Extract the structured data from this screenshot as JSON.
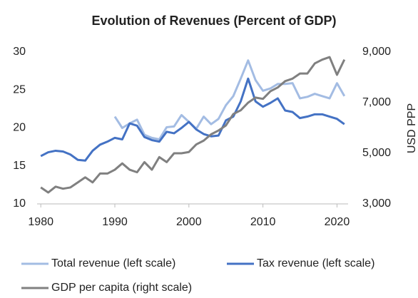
{
  "chart_data": {
    "type": "line",
    "title": "Evolution of Revenues (Percent of GDP)",
    "x": [
      1980,
      1981,
      1982,
      1983,
      1984,
      1985,
      1986,
      1987,
      1988,
      1989,
      1990,
      1991,
      1992,
      1993,
      1994,
      1995,
      1996,
      1997,
      1998,
      1999,
      2000,
      2001,
      2002,
      2003,
      2004,
      2005,
      2006,
      2007,
      2008,
      2009,
      2010,
      2011,
      2012,
      2013,
      2014,
      2015,
      2016,
      2017,
      2018,
      2019,
      2020,
      2021
    ],
    "xlim": [
      1979.5,
      2021.5
    ],
    "xticks": [
      1980,
      1990,
      2000,
      2010,
      2020
    ],
    "ylim": [
      10,
      30
    ],
    "yticks": [
      10,
      15,
      20,
      25,
      30
    ],
    "y2lim": [
      3000,
      9000
    ],
    "y2ticks": [
      {
        "value": 3000,
        "label": "3,000"
      },
      {
        "value": 5000,
        "label": "5,000"
      },
      {
        "value": 7000,
        "label": "7,000"
      },
      {
        "value": 9000,
        "label": "9,000"
      }
    ],
    "y2label": "USD PPP",
    "series": [
      {
        "name": "Total revenue (left scale)",
        "color": "#a3bce3",
        "values": [
          null,
          null,
          null,
          null,
          null,
          null,
          null,
          null,
          null,
          null,
          21.5,
          20.0,
          20.6,
          21.1,
          19.1,
          18.7,
          18.5,
          20.1,
          20.2,
          21.7,
          20.8,
          19.9,
          21.5,
          20.5,
          21.2,
          23.0,
          24.2,
          26.5,
          28.9,
          26.3,
          24.9,
          25.2,
          25.8,
          25.8,
          25.9,
          23.9,
          24.1,
          24.5,
          24.2,
          23.9,
          25.9,
          24.2
        ]
      },
      {
        "name": "Tax revenue (left scale)",
        "color": "#4472c4",
        "values": [
          16.3,
          16.8,
          17.0,
          16.9,
          16.5,
          15.8,
          15.7,
          17.0,
          17.8,
          18.2,
          18.7,
          18.5,
          20.6,
          20.3,
          18.8,
          18.4,
          18.2,
          19.5,
          19.3,
          20.0,
          20.8,
          19.8,
          19.2,
          18.9,
          19.0,
          21.0,
          21.5,
          23.5,
          26.5,
          23.5,
          22.8,
          23.3,
          23.9,
          22.3,
          22.1,
          21.3,
          21.5,
          21.8,
          21.8,
          21.5,
          21.2,
          20.5
        ]
      },
      {
        "name": "GDP per capita (right scale)",
        "color": "#808080",
        "axis": "y2",
        "values": [
          3650,
          3450,
          3680,
          3600,
          3650,
          3850,
          4050,
          3850,
          4200,
          4200,
          4350,
          4600,
          4350,
          4250,
          4650,
          4350,
          4850,
          4650,
          5000,
          5000,
          5050,
          5350,
          5500,
          5750,
          5900,
          6100,
          6550,
          6700,
          7000,
          7200,
          7150,
          7450,
          7600,
          7850,
          7950,
          8150,
          8150,
          8550,
          8700,
          8800,
          8100,
          8700
        ]
      }
    ]
  }
}
